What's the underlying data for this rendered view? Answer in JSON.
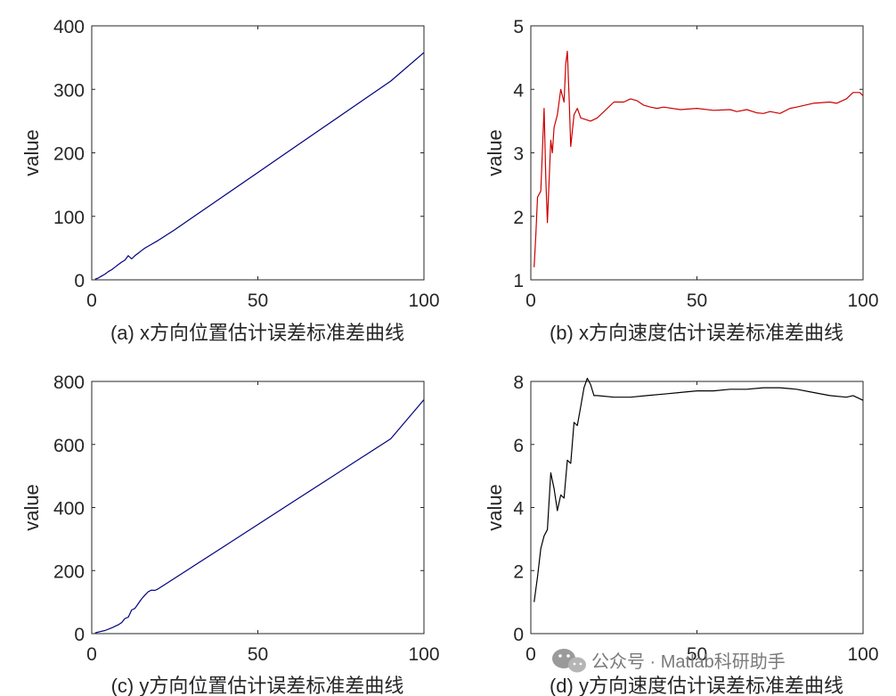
{
  "watermark": {
    "text": "公众号 · Matlab科研助手",
    "icon": "wechat-icon"
  },
  "chart_data": [
    {
      "type": "line",
      "caption": "(a) x方向位置估计误差标准差曲线",
      "xlabel": "",
      "ylabel": "value",
      "xlim": [
        0,
        100
      ],
      "ylim": [
        0,
        400
      ],
      "xticks": [
        0,
        50,
        100
      ],
      "yticks": [
        0,
        100,
        200,
        300,
        400
      ],
      "color": "#00007f",
      "series": [
        {
          "x": [
            1,
            2,
            3,
            4,
            5,
            6,
            7,
            8,
            9,
            10,
            11,
            12,
            13,
            14,
            15,
            16,
            18,
            20,
            25,
            30,
            40,
            50,
            60,
            70,
            80,
            90,
            100
          ],
          "y": [
            1,
            3,
            6,
            9,
            13,
            16,
            20,
            24,
            28,
            31,
            38,
            33,
            38,
            42,
            46,
            50,
            56,
            62,
            79,
            97,
            133,
            169,
            205,
            241,
            277,
            313,
            358
          ]
        }
      ]
    },
    {
      "type": "line",
      "caption": "(b) x方向速度估计误差标准差曲线",
      "xlabel": "",
      "ylabel": "value",
      "xlim": [
        0,
        100
      ],
      "ylim": [
        1,
        5
      ],
      "xticks": [
        0,
        50,
        100
      ],
      "yticks": [
        1,
        2,
        3,
        4,
        5
      ],
      "color": "#cc0000",
      "series": [
        {
          "x": [
            1,
            1.5,
            2,
            3,
            4,
            4.5,
            5,
            6,
            6.5,
            7,
            8,
            9,
            10,
            10.5,
            11,
            11.5,
            12,
            13,
            14,
            15,
            18,
            20,
            22,
            25,
            28,
            30,
            32,
            34,
            36,
            38,
            40,
            45,
            50,
            55,
            60,
            62,
            65,
            68,
            70,
            72,
            75,
            78,
            80,
            85,
            90,
            92,
            95,
            97,
            99,
            100
          ],
          "y": [
            1.2,
            1.7,
            2.3,
            2.4,
            3.7,
            2.6,
            1.9,
            3.2,
            3.0,
            3.4,
            3.6,
            4.0,
            3.8,
            4.4,
            4.6,
            3.9,
            3.1,
            3.6,
            3.7,
            3.55,
            3.5,
            3.55,
            3.65,
            3.8,
            3.8,
            3.85,
            3.82,
            3.75,
            3.72,
            3.7,
            3.72,
            3.68,
            3.7,
            3.67,
            3.68,
            3.65,
            3.68,
            3.63,
            3.62,
            3.65,
            3.62,
            3.7,
            3.72,
            3.78,
            3.8,
            3.78,
            3.85,
            3.95,
            3.95,
            3.9
          ]
        }
      ]
    },
    {
      "type": "line",
      "caption": "(c) y方向位置估计误差标准差曲线",
      "xlabel": "",
      "ylabel": "value",
      "xlim": [
        0,
        100
      ],
      "ylim": [
        0,
        800
      ],
      "xticks": [
        0,
        50,
        100
      ],
      "yticks": [
        0,
        200,
        400,
        600,
        800
      ],
      "color": "#00007f",
      "series": [
        {
          "x": [
            1,
            2,
            4,
            6,
            8,
            9,
            10,
            11,
            12,
            13,
            14,
            15,
            16,
            17,
            18,
            19,
            20,
            30,
            40,
            50,
            60,
            70,
            80,
            90,
            100
          ],
          "y": [
            2,
            5,
            10,
            18,
            28,
            35,
            48,
            52,
            75,
            80,
            95,
            110,
            122,
            133,
            138,
            137,
            142,
            210,
            278,
            346,
            414,
            482,
            550,
            618,
            742
          ]
        }
      ]
    },
    {
      "type": "line",
      "caption": "(d) y方向速度估计误差标准差曲线",
      "xlabel": "",
      "ylabel": "value",
      "xlim": [
        0,
        100
      ],
      "ylim": [
        0,
        8
      ],
      "xticks": [
        0,
        50,
        100
      ],
      "yticks": [
        0,
        2,
        4,
        6,
        8
      ],
      "color": "#000000",
      "series": [
        {
          "x": [
            1,
            2,
            3,
            4,
            5,
            6,
            7,
            8,
            9,
            10,
            11,
            12,
            13,
            14,
            15,
            16,
            17,
            18,
            19,
            20,
            25,
            30,
            35,
            40,
            45,
            50,
            55,
            60,
            65,
            70,
            75,
            80,
            85,
            90,
            95,
            97,
            100
          ],
          "y": [
            1.0,
            1.8,
            2.7,
            3.1,
            3.3,
            5.1,
            4.6,
            3.9,
            4.4,
            4.3,
            5.5,
            5.4,
            6.7,
            6.6,
            7.2,
            7.8,
            8.1,
            7.9,
            7.55,
            7.55,
            7.5,
            7.5,
            7.55,
            7.6,
            7.65,
            7.7,
            7.7,
            7.75,
            7.75,
            7.8,
            7.8,
            7.75,
            7.65,
            7.55,
            7.5,
            7.55,
            7.4
          ]
        }
      ]
    }
  ]
}
